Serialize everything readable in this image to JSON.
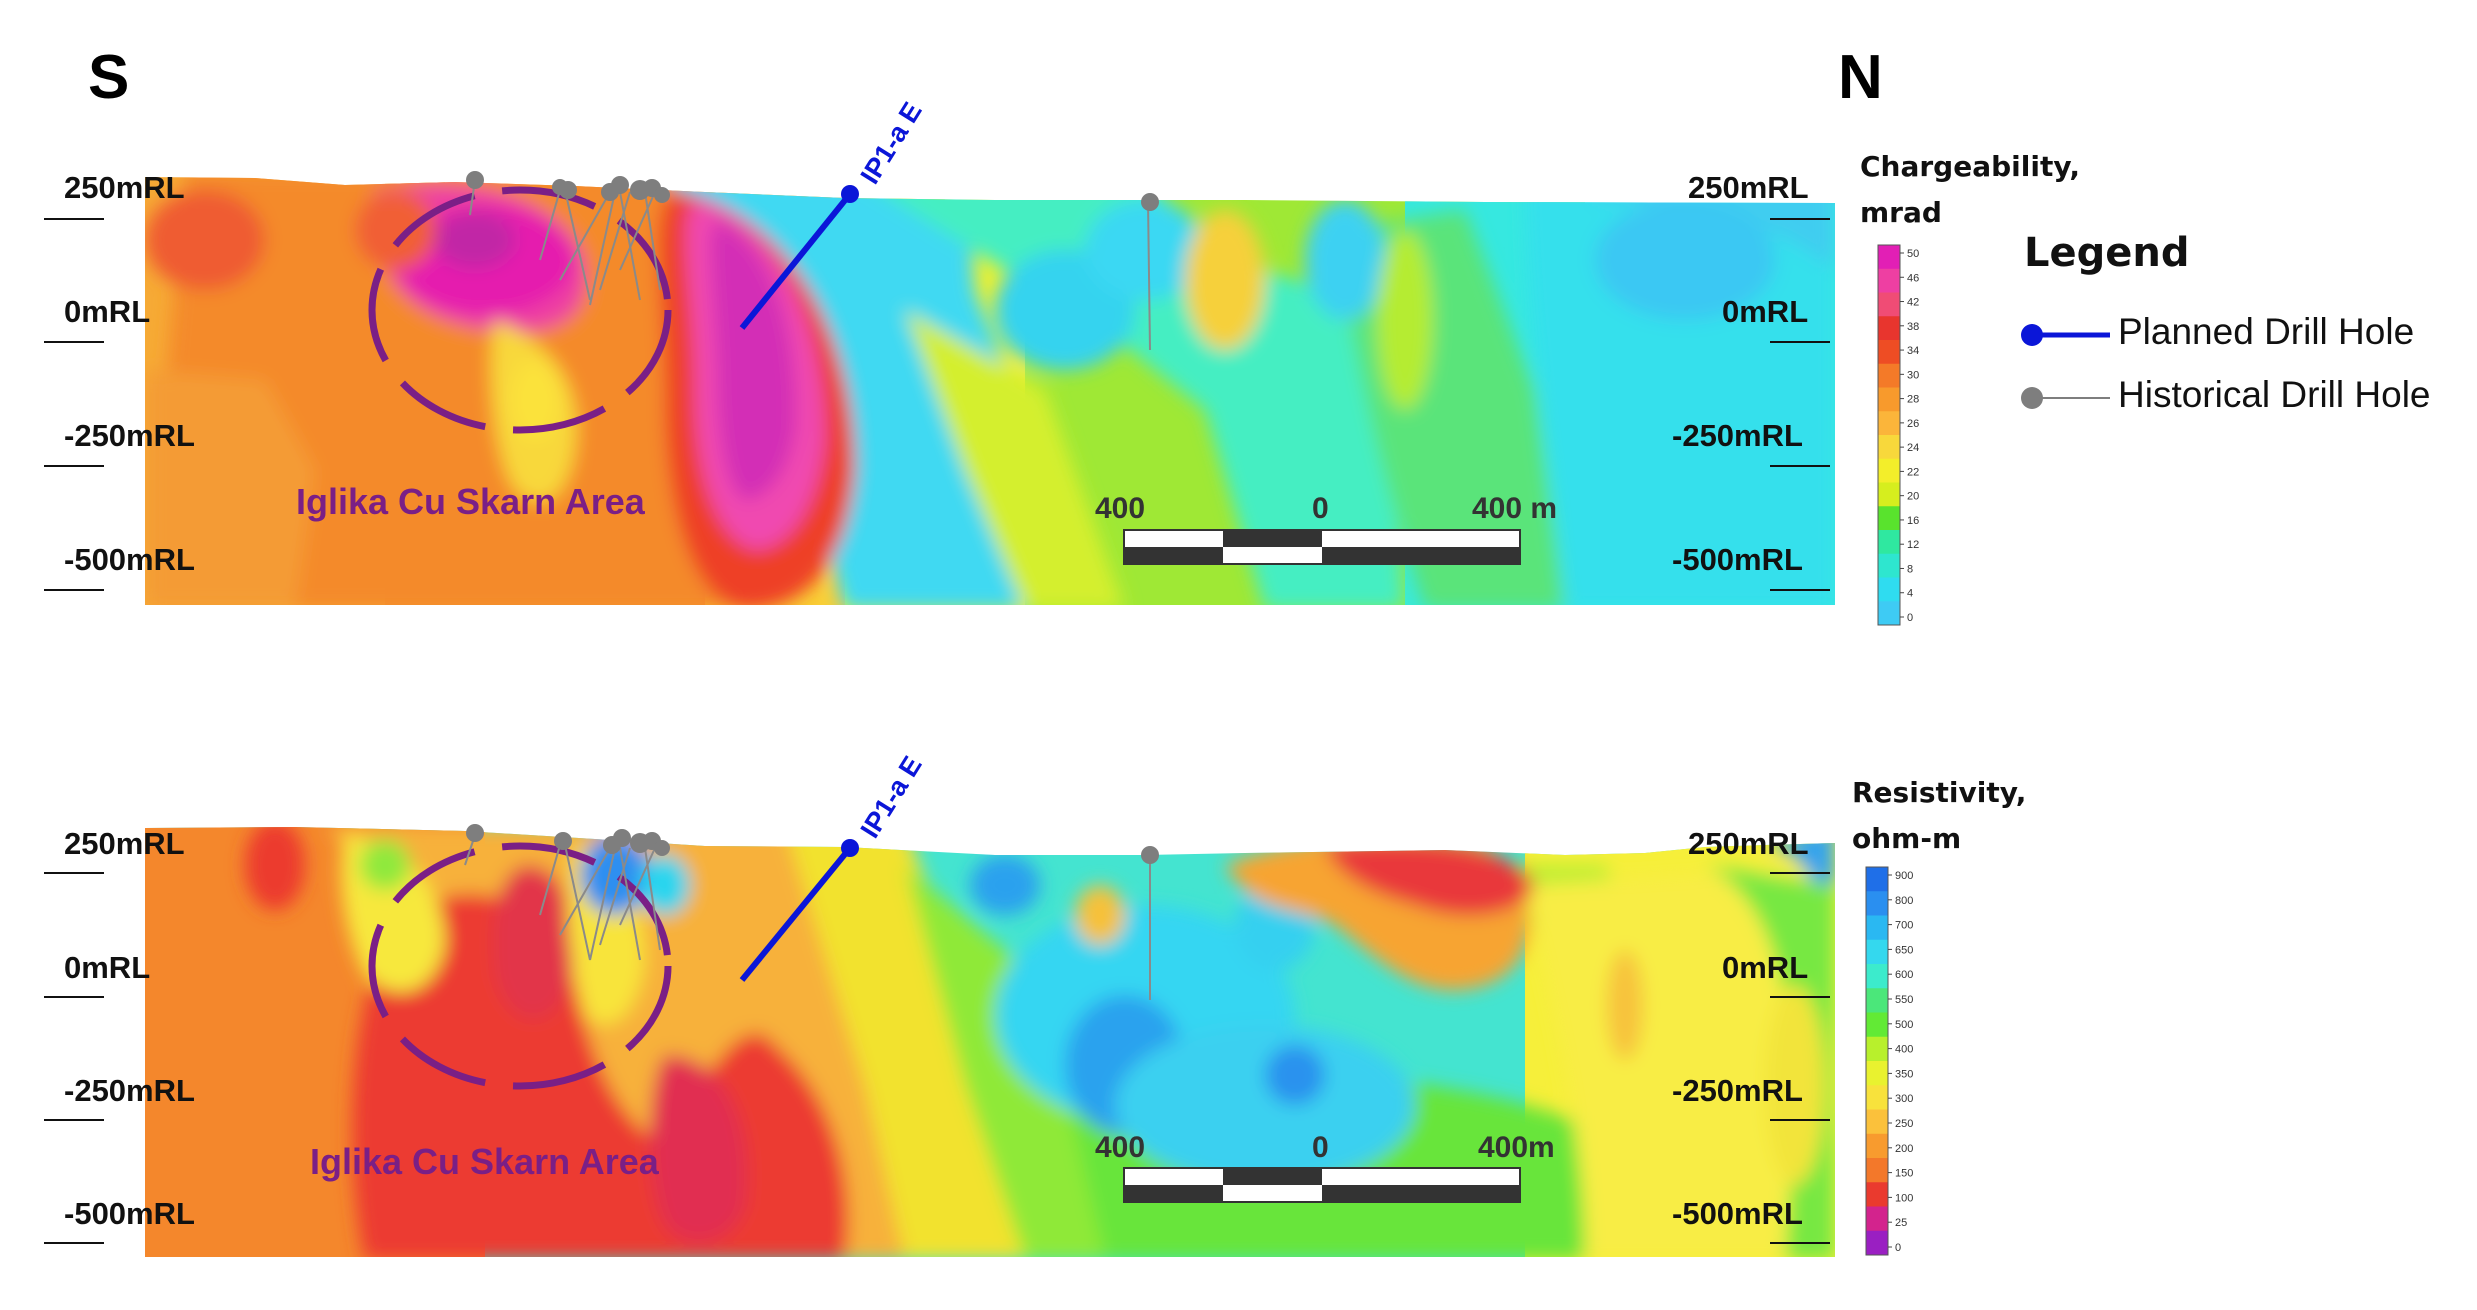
{
  "directions": {
    "south": "S",
    "north": "N"
  },
  "sections": [
    {
      "id": "chargeability",
      "levels": [
        "250mRL",
        "0mRL",
        "-250mRL",
        "-500mRL"
      ],
      "area_label": "Iglika Cu Skarn Area",
      "hole_label": "IP1-a E",
      "scale": {
        "left": "400",
        "mid": "0",
        "right": "400 m"
      },
      "colorbar": {
        "title_line1": "Chargeability,",
        "title_line2": "mrad",
        "ticks": [
          "50",
          "46",
          "42",
          "38",
          "34",
          "30",
          "28",
          "26",
          "24",
          "22",
          "20",
          "16",
          "12",
          "8",
          "4",
          "0"
        ],
        "colors": [
          "#e21fb5",
          "#ee3fa2",
          "#f04c75",
          "#e8352e",
          "#ee4d24",
          "#f47a28",
          "#f89a2c",
          "#fbb53a",
          "#f8d83b",
          "#f3ee2a",
          "#d6ee1e",
          "#59e32d",
          "#2fe8a0",
          "#2ee6cf",
          "#2fdcf0",
          "#3ecbf4"
        ]
      }
    },
    {
      "id": "resistivity",
      "levels": [
        "250mRL",
        "0mRL",
        "-250mRL",
        "-500mRL"
      ],
      "area_label": "Iglika Cu Skarn Area",
      "hole_label": "IP1-a E",
      "scale": {
        "left": "400",
        "mid": "0",
        "right": "400m"
      },
      "colorbar": {
        "title_line1": "Resistivity,",
        "title_line2": "ohm-m",
        "ticks": [
          "900",
          "800",
          "700",
          "650",
          "600",
          "550",
          "500",
          "400",
          "350",
          "300",
          "250",
          "200",
          "150",
          "100",
          "25",
          "0"
        ],
        "colors": [
          "#1f6fe8",
          "#2a8ff0",
          "#2ab8f2",
          "#34d8ee",
          "#3cebcc",
          "#4be77a",
          "#62ea35",
          "#b8f02c",
          "#e9f22f",
          "#f8e23c",
          "#fbc13b",
          "#f89b2e",
          "#f3782a",
          "#ea3a2e",
          "#d3238d",
          "#9a1fc2"
        ]
      }
    }
  ],
  "legend": {
    "title": "Legend",
    "planned": "Planned  Drill Hole",
    "historical": "Historical Drill Hole",
    "planned_color": "#0b16d8",
    "historical_color": "#7e7e7e",
    "area_outline_color": "#7a1f86"
  }
}
